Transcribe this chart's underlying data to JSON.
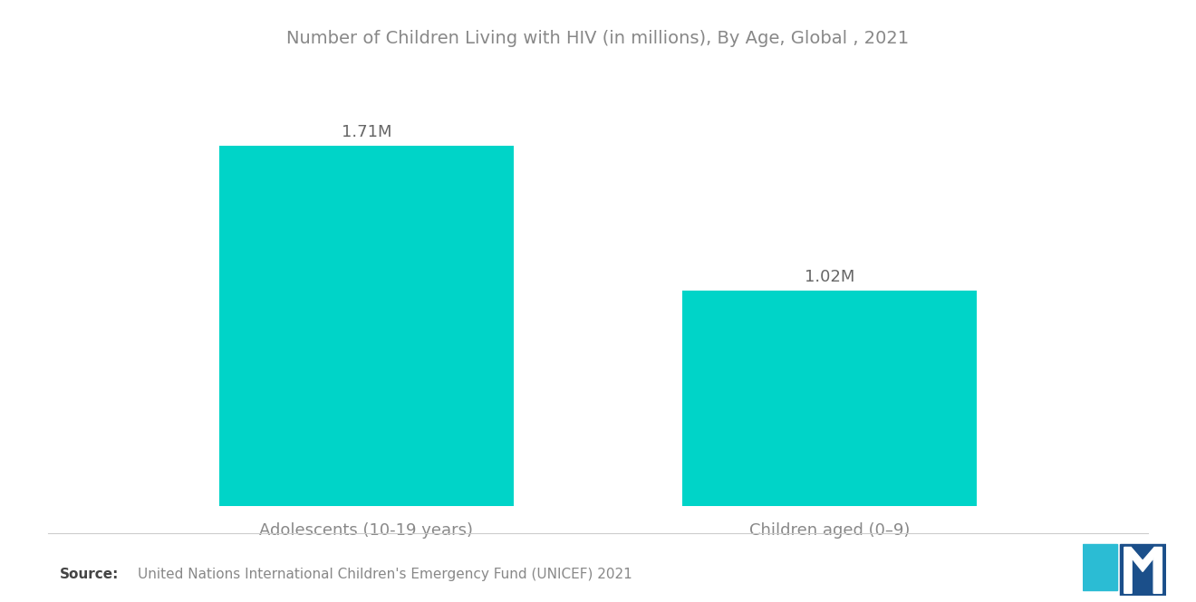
{
  "title": "Number of Children Living with HIV (in millions), By Age, Global , 2021",
  "categories": [
    "Adolescents (10-19 years)",
    "Children aged (0–9)"
  ],
  "values": [
    1.71,
    1.02
  ],
  "labels": [
    "1.71M",
    "1.02M"
  ],
  "bar_color": "#00D4C8",
  "background_color": "#ffffff",
  "title_color": "#888888",
  "label_color": "#666666",
  "xlabel_color": "#888888",
  "source_bold": "Source:",
  "source_text": "  United Nations International Children's Emergency Fund (UNICEF) 2021",
  "title_fontsize": 14,
  "label_fontsize": 13,
  "category_fontsize": 13,
  "source_fontsize": 11,
  "ylim": [
    0,
    2.0
  ],
  "bar_width": 0.28,
  "x_positions": [
    0.28,
    0.72
  ]
}
